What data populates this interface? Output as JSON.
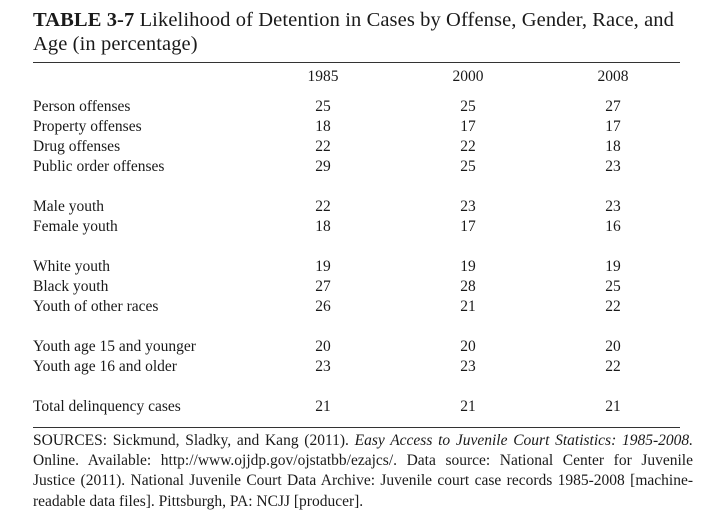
{
  "title": {
    "label": "TABLE 3-7",
    "text": "Likelihood of Detention in Cases by Offense, Gender, Race, and Age (in percentage)"
  },
  "columns": [
    "1985",
    "2000",
    "2008"
  ],
  "groups": [
    {
      "rows": [
        {
          "label": "Person offenses",
          "values": [
            "25",
            "25",
            "27"
          ]
        },
        {
          "label": "Property offenses",
          "values": [
            "18",
            "17",
            "17"
          ]
        },
        {
          "label": "Drug offenses",
          "values": [
            "22",
            "22",
            "18"
          ]
        },
        {
          "label": "Public order offenses",
          "values": [
            "29",
            "25",
            "23"
          ]
        }
      ]
    },
    {
      "rows": [
        {
          "label": "Male youth",
          "values": [
            "22",
            "23",
            "23"
          ]
        },
        {
          "label": "Female youth",
          "values": [
            "18",
            "17",
            "16"
          ]
        }
      ]
    },
    {
      "rows": [
        {
          "label": "White youth",
          "values": [
            "19",
            "19",
            "19"
          ]
        },
        {
          "label": "Black youth",
          "values": [
            "27",
            "28",
            "25"
          ]
        },
        {
          "label": "Youth of other races",
          "values": [
            "26",
            "21",
            "22"
          ]
        }
      ]
    },
    {
      "rows": [
        {
          "label": "Youth age 15 and younger",
          "values": [
            "20",
            "20",
            "20"
          ]
        },
        {
          "label": "Youth age 16 and older",
          "values": [
            "23",
            "23",
            "22"
          ]
        }
      ]
    },
    {
      "rows": [
        {
          "label": "Total delinquency cases",
          "values": [
            "21",
            "21",
            "21"
          ]
        }
      ]
    }
  ],
  "sources": {
    "prefix": "SOURCES: Sickmund, Sladky, and Kang (2011).",
    "italic": "Easy Access to Juvenile Court Statistics: 1985-2008.",
    "suffix": "Online. Available: http://www.ojjdp.gov/ojstatbb/ezajcs/. Data source: National Center for Juvenile Justice (2011). National Juvenile Court Data Archive: Juvenile court case records 1985-2008 [machine-readable data files]. Pittsburgh, PA: NCJJ [producer]."
  }
}
